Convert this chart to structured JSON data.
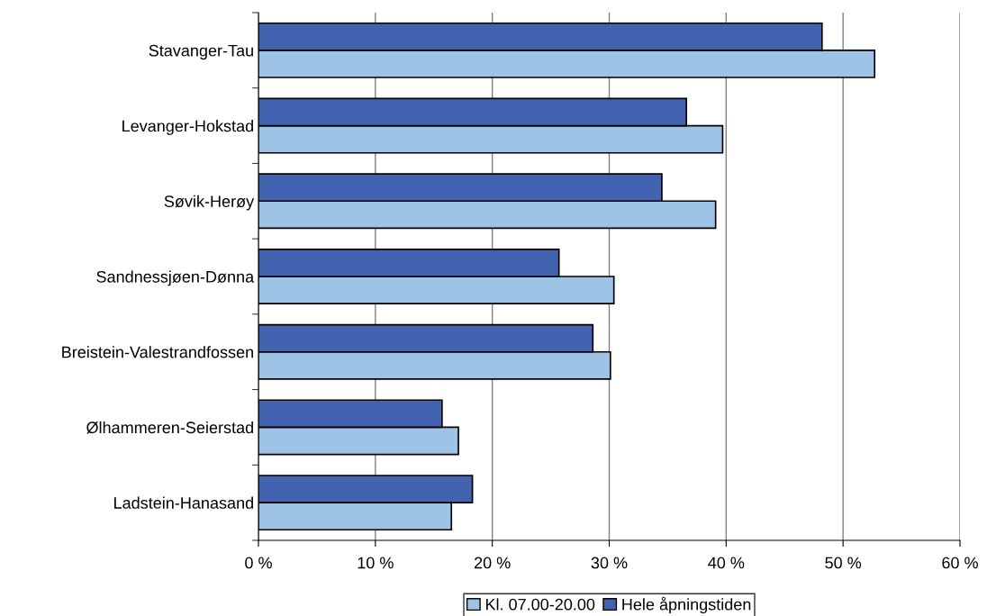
{
  "chart_data": {
    "type": "bar",
    "orientation": "horizontal",
    "categories": [
      "Stavanger-Tau",
      "Levanger-Hokstad",
      "Søvik-Herøy",
      "Sandnessjøen-Dønna",
      "Breistein-Valestrandfossen",
      "Ølhammeren-Seierstad",
      "Ladstein-Hanasand"
    ],
    "series": [
      {
        "name": "Kl. 07.00-20.00",
        "color": "#9dc3e6",
        "values": [
          52.7,
          39.7,
          39.1,
          30.4,
          30.1,
          17.1,
          16.5
        ]
      },
      {
        "name": "Hele åpningstiden",
        "color": "#4263af",
        "values": [
          48.2,
          36.6,
          34.5,
          25.7,
          28.6,
          15.7,
          18.3
        ]
      }
    ],
    "xlim": [
      0,
      60
    ],
    "xticks": [
      {
        "value": 0,
        "label": "0 %"
      },
      {
        "value": 10,
        "label": "10 %"
      },
      {
        "value": 20,
        "label": "20 %"
      },
      {
        "value": 30,
        "label": "30 %"
      },
      {
        "value": 40,
        "label": "40 %"
      },
      {
        "value": 50,
        "label": "50 %"
      },
      {
        "value": 60,
        "label": "60 %"
      }
    ],
    "grid": "x",
    "legend": "bottom"
  }
}
